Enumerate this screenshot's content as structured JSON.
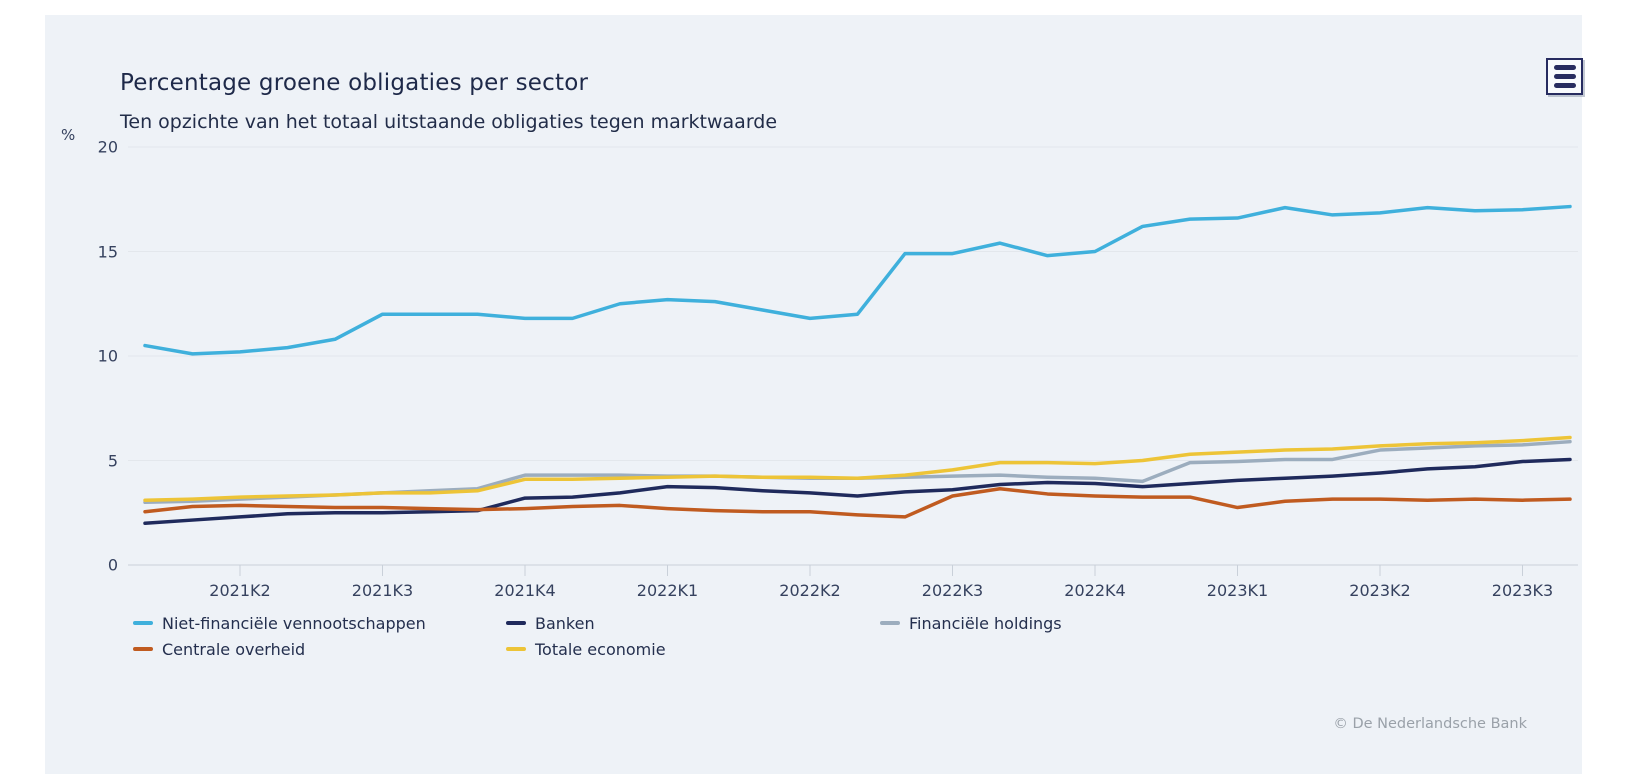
{
  "panel": {
    "title": "Percentage groene obligaties per sector",
    "subtitle": "Ten opzichte van het totaal uitstaande obligaties tegen marktwaarde",
    "credit": "© De Nederlandsche Bank"
  },
  "colors": {
    "panel_bg": "#eef2f7",
    "grid": "#e3e7ec",
    "axis": "#c9d0d9",
    "title_text": "#1e2949",
    "axis_text": "#36425f",
    "legend_text": "#242f4e",
    "credit_text": "#9aa1a9",
    "menu_icon": "#272c60"
  },
  "chart_data": {
    "type": "line",
    "title": "Percentage groene obligaties per sector",
    "subtitle": "Ten opzichte van het totaal uitstaande obligaties tegen marktwaarde",
    "unit_label": "%",
    "ylabel": "%",
    "ylim": [
      0,
      20
    ],
    "yticks": [
      0,
      5,
      10,
      15,
      20
    ],
    "grid": true,
    "legend_position": "bottom",
    "x_tick_labels": [
      "2021K2",
      "2021K3",
      "2021K4",
      "2022K1",
      "2022K2",
      "2022K3",
      "2022K4",
      "2023K1",
      "2023K2",
      "2023K3"
    ],
    "x_tick_indices": [
      2,
      5,
      8,
      11,
      14,
      17,
      20,
      23,
      26,
      29
    ],
    "x_note": "monthly points, quarterly tick labels",
    "series": [
      {
        "name": "Niet-financiële vennootschappen",
        "color": "#3fb0dc",
        "values": [
          10.5,
          10.1,
          10.2,
          10.4,
          10.8,
          12.0,
          12.0,
          12.0,
          11.8,
          11.8,
          12.5,
          12.7,
          12.6,
          12.2,
          11.8,
          12.0,
          14.9,
          14.9,
          15.4,
          14.8,
          15.0,
          16.2,
          16.55,
          16.6,
          17.1,
          16.75,
          16.85,
          17.1,
          16.95,
          17.0,
          17.15
        ]
      },
      {
        "name": "Banken",
        "color": "#1f2a5c",
        "values": [
          2.0,
          2.15,
          2.3,
          2.45,
          2.5,
          2.5,
          2.55,
          2.6,
          3.2,
          3.25,
          3.45,
          3.75,
          3.7,
          3.55,
          3.45,
          3.3,
          3.5,
          3.6,
          3.85,
          3.95,
          3.9,
          3.75,
          3.9,
          4.05,
          4.15,
          4.25,
          4.4,
          4.6,
          4.7,
          4.95,
          5.05
        ]
      },
      {
        "name": "Financiële holdings",
        "color": "#9cadbe",
        "values": [
          3.0,
          3.05,
          3.15,
          3.25,
          3.35,
          3.45,
          3.55,
          3.65,
          4.3,
          4.3,
          4.3,
          4.25,
          4.25,
          4.2,
          4.15,
          4.15,
          4.2,
          4.25,
          4.3,
          4.2,
          4.15,
          4.0,
          4.9,
          4.95,
          5.05,
          5.05,
          5.5,
          5.6,
          5.7,
          5.75,
          5.9
        ]
      },
      {
        "name": "Centrale overheid",
        "color": "#c05b20",
        "values": [
          2.55,
          2.8,
          2.85,
          2.8,
          2.75,
          2.75,
          2.7,
          2.65,
          2.7,
          2.8,
          2.85,
          2.7,
          2.6,
          2.55,
          2.55,
          2.4,
          2.3,
          3.3,
          3.65,
          3.4,
          3.3,
          3.25,
          3.25,
          2.75,
          3.05,
          3.15,
          3.15,
          3.1,
          3.15,
          3.1,
          3.15
        ]
      },
      {
        "name": "Totale economie",
        "color": "#edc437",
        "values": [
          3.1,
          3.15,
          3.25,
          3.3,
          3.35,
          3.45,
          3.45,
          3.55,
          4.1,
          4.1,
          4.15,
          4.2,
          4.25,
          4.2,
          4.2,
          4.15,
          4.3,
          4.55,
          4.9,
          4.9,
          4.85,
          5.0,
          5.3,
          5.4,
          5.5,
          5.55,
          5.7,
          5.8,
          5.85,
          5.95,
          6.1
        ]
      }
    ]
  }
}
